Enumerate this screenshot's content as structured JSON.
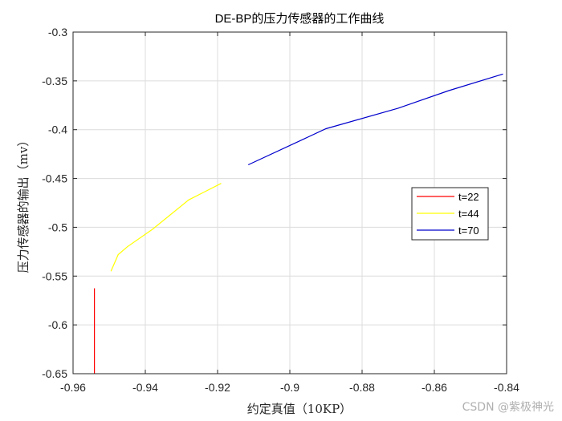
{
  "chart_data": {
    "type": "line",
    "title": "DE-BP的压力传感器的工作曲线",
    "xlabel": "约定真值（10KP）",
    "ylabel": "压力传感器的输出（mv）",
    "xlim": [
      -0.96,
      -0.84
    ],
    "ylim": [
      -0.65,
      -0.3
    ],
    "xticks": [
      -0.96,
      -0.94,
      -0.92,
      -0.9,
      -0.88,
      -0.86,
      -0.84
    ],
    "yticks": [
      -0.3,
      -0.35,
      -0.4,
      -0.45,
      -0.5,
      -0.55,
      -0.6,
      -0.65
    ],
    "xtick_labels": [
      "-0.96",
      "-0.94",
      "-0.92",
      "-0.9",
      "-0.88",
      "-0.86",
      "-0.84"
    ],
    "ytick_labels": [
      "-0.3",
      "-0.35",
      "-0.4",
      "-0.45",
      "-0.5",
      "-0.55",
      "-0.6",
      "-0.65"
    ],
    "grid": true,
    "legend_position": "right",
    "series": [
      {
        "name": "t=22",
        "color": "#ff0000",
        "x": [
          -0.9541,
          -0.9541
        ],
        "y": [
          -0.65,
          -0.5625
        ]
      },
      {
        "name": "t=44",
        "color": "#ffff00",
        "x": [
          -0.9495,
          -0.9475,
          -0.945,
          -0.938,
          -0.928,
          -0.919
        ],
        "y": [
          -0.545,
          -0.528,
          -0.52,
          -0.502,
          -0.472,
          -0.455
        ]
      },
      {
        "name": "t=70",
        "color": "#0000cc",
        "x": [
          -0.9115,
          -0.89,
          -0.87,
          -0.856,
          -0.841
        ],
        "y": [
          -0.436,
          -0.399,
          -0.378,
          -0.36,
          -0.343
        ]
      }
    ]
  },
  "watermark": "CSDN @紫极神光"
}
